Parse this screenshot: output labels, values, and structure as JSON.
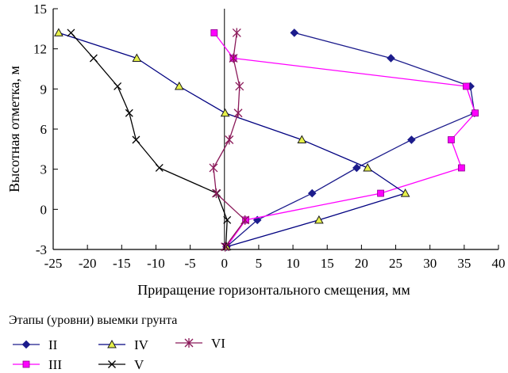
{
  "chart_data": {
    "type": "line",
    "xlabel": "Приращение горизонтального смещения, мм",
    "ylabel": "Высотная отметка, м",
    "xlim": [
      -25,
      40
    ],
    "ylim": [
      -3,
      15
    ],
    "xticks": [
      -25,
      -20,
      -15,
      -10,
      -5,
      0,
      5,
      10,
      15,
      20,
      25,
      30,
      35,
      40
    ],
    "yticks": [
      -3,
      0,
      3,
      6,
      9,
      12,
      15
    ],
    "grid": false,
    "legend_title": "Этапы (уровни) выемки грунта",
    "legend_placement": "bottom-left",
    "series": [
      {
        "name": "II",
        "color": "#1c1c8c",
        "marker": "diamond",
        "points": [
          [
            10.2,
            13.2
          ],
          [
            24.3,
            11.3
          ],
          [
            35.9,
            9.2
          ],
          [
            36.5,
            7.2
          ],
          [
            27.3,
            5.2
          ],
          [
            19.3,
            3.1
          ],
          [
            12.8,
            1.2
          ],
          [
            4.8,
            -0.8
          ],
          [
            0.3,
            -2.8
          ]
        ]
      },
      {
        "name": "III",
        "color": "#ff00ff",
        "marker": "square",
        "points": [
          [
            -1.5,
            13.2
          ],
          [
            1.3,
            11.3
          ],
          [
            35.3,
            9.2
          ],
          [
            36.6,
            7.2
          ],
          [
            33.1,
            5.2
          ],
          [
            34.6,
            3.1
          ],
          [
            22.8,
            1.2
          ],
          [
            3.1,
            -0.8
          ],
          [
            0.3,
            -2.8
          ]
        ]
      },
      {
        "name": "IV",
        "color": "#000080",
        "marker": "triangle",
        "points": [
          [
            -24.2,
            13.2
          ],
          [
            -12.8,
            11.3
          ],
          [
            -6.6,
            9.2
          ],
          [
            0.1,
            7.2
          ],
          [
            11.3,
            5.2
          ],
          [
            20.9,
            3.1
          ],
          [
            26.4,
            1.2
          ],
          [
            13.8,
            -0.8
          ],
          [
            0.3,
            -2.8
          ]
        ]
      },
      {
        "name": "V",
        "color": "#000000",
        "marker": "x",
        "points": [
          [
            -22.4,
            13.2
          ],
          [
            -19.1,
            11.3
          ],
          [
            -15.6,
            9.2
          ],
          [
            -13.9,
            7.2
          ],
          [
            -12.9,
            5.2
          ],
          [
            -9.5,
            3.1
          ],
          [
            -1.1,
            1.2
          ],
          [
            0.4,
            -0.8
          ],
          [
            0.2,
            -2.8
          ]
        ]
      },
      {
        "name": "VI",
        "color": "#8b1a5a",
        "marker": "asterisk",
        "points": [
          [
            1.8,
            13.2
          ],
          [
            1.3,
            11.3
          ],
          [
            2.2,
            9.2
          ],
          [
            2.0,
            7.2
          ],
          [
            0.7,
            5.2
          ],
          [
            -1.6,
            3.1
          ],
          [
            -1.2,
            1.2
          ],
          [
            3.0,
            -0.8
          ],
          [
            0.1,
            -2.8
          ]
        ]
      }
    ]
  }
}
